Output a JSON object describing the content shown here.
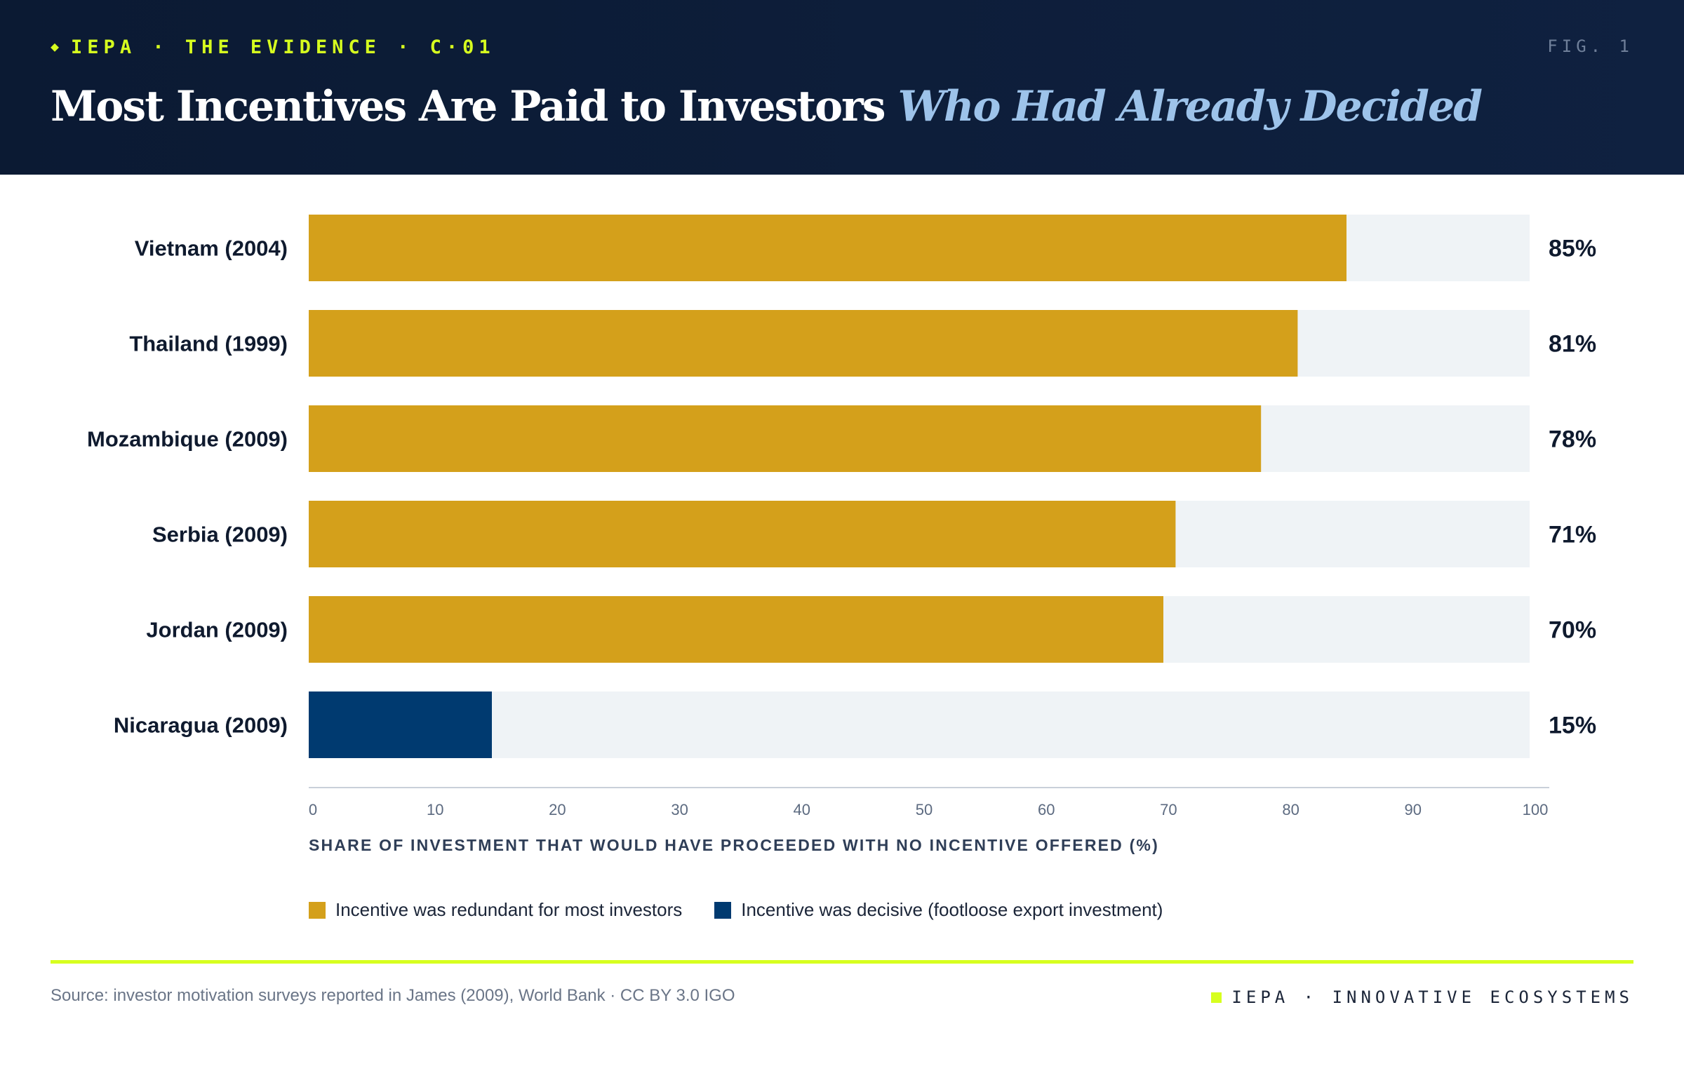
{
  "header": {
    "eyebrow": "IEPA · THE EVIDENCE · C·01",
    "fig_label": "FIG. 1",
    "title_main": "Most Incentives Are Paid to Investors",
    "title_accent": "Who Had Already Decided"
  },
  "colors": {
    "header_bg": "#0b1a33",
    "accent_lime": "#d7ff1f",
    "title_accent": "#9dc3ea",
    "redundant": "#d4a01b",
    "decisive": "#003a70",
    "track": "#eff3f6"
  },
  "chart_data": {
    "type": "bar",
    "orientation": "horizontal",
    "categories": [
      "Vietnam (2004)",
      "Thailand (1999)",
      "Mozambique (2009)",
      "Serbia (2009)",
      "Jordan (2009)",
      "Nicaragua (2009)"
    ],
    "values": [
      85,
      81,
      78,
      71,
      70,
      15
    ],
    "value_labels": [
      "85%",
      "81%",
      "78%",
      "71%",
      "70%",
      "15%"
    ],
    "groups": [
      "redundant",
      "redundant",
      "redundant",
      "redundant",
      "redundant",
      "decisive"
    ],
    "xlabel": "SHARE OF INVESTMENT THAT WOULD HAVE PROCEEDED WITH NO INCENTIVE OFFERED (%)",
    "xlim": [
      0,
      100
    ],
    "xticks": [
      0,
      10,
      20,
      30,
      40,
      50,
      60,
      70,
      80,
      90,
      100
    ],
    "legend": [
      {
        "key": "redundant",
        "label": "Incentive was redundant for most investors",
        "color": "#d4a01b"
      },
      {
        "key": "decisive",
        "label": "Incentive was decisive (footloose export investment)",
        "color": "#003a70"
      }
    ],
    "legend_position": "bottom",
    "grid": false
  },
  "footer": {
    "source": "Source: investor motivation surveys reported in James (2009), World Bank · CC BY 3.0 IGO",
    "brand": "IEPA · INNOVATIVE ECOSYSTEMS"
  }
}
